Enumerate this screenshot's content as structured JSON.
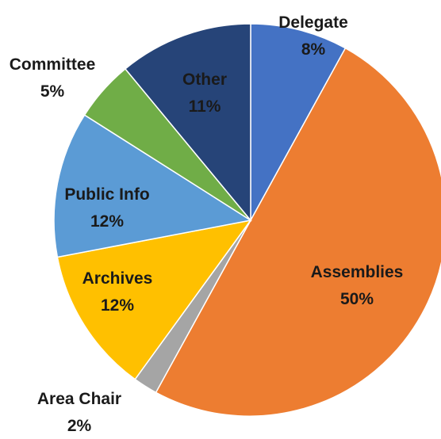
{
  "chart_data": {
    "type": "pie",
    "title": "",
    "slices": [
      {
        "label": "Delegate",
        "pct_label": "8%",
        "value": 8,
        "color": "#4472C4",
        "text_color": "#1a1a1a"
      },
      {
        "label": "Assemblies",
        "pct_label": "50%",
        "value": 50,
        "color": "#ED7D31",
        "text_color": "#1a1a1a"
      },
      {
        "label": "Area Chair",
        "pct_label": "2%",
        "value": 2,
        "color": "#A5A5A5",
        "text_color": "#1a1a1a"
      },
      {
        "label": "Archives",
        "pct_label": "12%",
        "value": 12,
        "color": "#FFC000",
        "text_color": "#1a1a1a"
      },
      {
        "label": "Public Info",
        "pct_label": "12%",
        "value": 12,
        "color": "#5B9BD5",
        "text_color": "#1a1a1a"
      },
      {
        "label": "Committee",
        "pct_label": "5%",
        "value": 5,
        "color": "#70AD47",
        "text_color": "#1a1a1a"
      },
      {
        "label": "Other",
        "pct_label": "11%",
        "value": 11,
        "color": "#264478",
        "text_color": "#1a1a1a"
      }
    ],
    "start_angle_deg": 0,
    "direction": "clockwise",
    "legend": "none"
  }
}
